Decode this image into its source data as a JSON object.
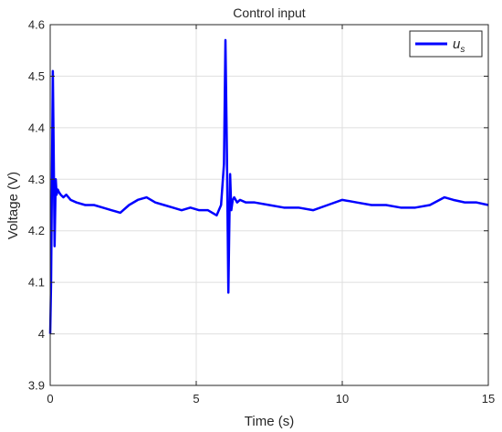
{
  "chart_data": {
    "type": "line",
    "title": "Control input",
    "xlabel": "Time (s)",
    "ylabel": "Voltage (V)",
    "xlim": [
      0,
      15
    ],
    "ylim": [
      3.9,
      4.6
    ],
    "x_ticks": [
      0,
      5,
      10,
      15
    ],
    "x_tick_labels": [
      "0",
      "5",
      "10",
      "15"
    ],
    "y_ticks": [
      3.9,
      4.0,
      4.1,
      4.2,
      4.3,
      4.4,
      4.5,
      4.6
    ],
    "y_tick_labels": [
      "3.9",
      "4",
      "4.1",
      "4.2",
      "4.3",
      "4.4",
      "4.5",
      "4.6"
    ],
    "grid": true,
    "legend_position": "top-right",
    "line_color": "#0000ff",
    "series": [
      {
        "name": "u_s",
        "x": [
          0,
          0.03,
          0.06,
          0.09,
          0.12,
          0.15,
          0.19,
          0.22,
          0.26,
          0.3,
          0.36,
          0.45,
          0.55,
          0.7,
          0.9,
          1.2,
          1.5,
          1.8,
          2.1,
          2.4,
          2.7,
          3.0,
          3.3,
          3.6,
          3.9,
          4.2,
          4.5,
          4.8,
          5.1,
          5.4,
          5.7,
          5.85,
          5.95,
          6.0,
          6.05,
          6.1,
          6.13,
          6.16,
          6.2,
          6.25,
          6.3,
          6.35,
          6.4,
          6.5,
          6.7,
          7.0,
          7.5,
          8.0,
          8.5,
          9.0,
          9.5,
          10.0,
          10.5,
          11.0,
          11.5,
          12.0,
          12.5,
          13.0,
          13.5,
          13.8,
          14.2,
          14.6,
          15.0
        ],
        "y": [
          4.0,
          4.1,
          4.3,
          4.51,
          4.35,
          4.17,
          4.3,
          4.27,
          4.28,
          4.275,
          4.27,
          4.265,
          4.27,
          4.26,
          4.255,
          4.25,
          4.25,
          4.245,
          4.24,
          4.235,
          4.25,
          4.26,
          4.265,
          4.255,
          4.25,
          4.245,
          4.24,
          4.245,
          4.24,
          4.24,
          4.23,
          4.25,
          4.33,
          4.57,
          4.35,
          4.08,
          4.2,
          4.31,
          4.24,
          4.26,
          4.265,
          4.26,
          4.255,
          4.26,
          4.255,
          4.255,
          4.25,
          4.245,
          4.245,
          4.24,
          4.25,
          4.26,
          4.255,
          4.25,
          4.25,
          4.245,
          4.245,
          4.25,
          4.265,
          4.26,
          4.255,
          4.255,
          4.25
        ]
      }
    ]
  }
}
